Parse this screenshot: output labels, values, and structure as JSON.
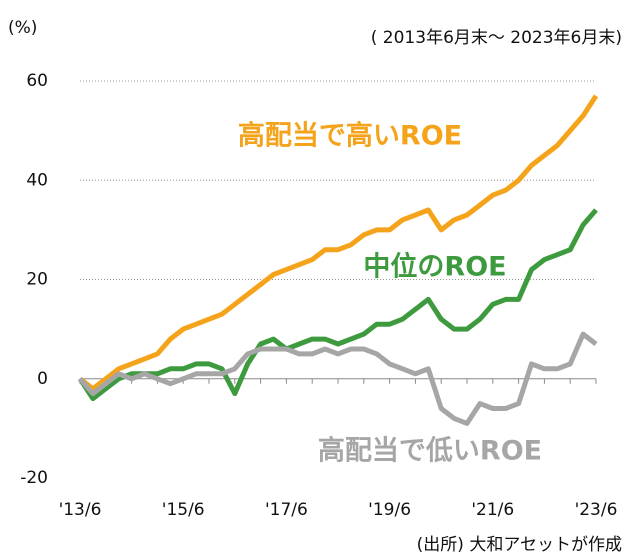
{
  "chart_data": {
    "type": "line",
    "y_unit": "(%)",
    "subtitle": "( 2013年6月末～ 2023年6月末)",
    "source": "(出所) 大和アセットが作成",
    "categories": [
      "'13/6",
      null,
      null,
      null,
      null,
      null,
      null,
      null,
      "'15/6",
      null,
      null,
      null,
      null,
      null,
      null,
      null,
      "'17/6",
      null,
      null,
      null,
      null,
      null,
      null,
      null,
      "'19/6",
      null,
      null,
      null,
      null,
      null,
      null,
      null,
      "'21/6",
      null,
      null,
      null,
      null,
      null,
      null,
      null,
      "'23/6"
    ],
    "series": [
      {
        "name": "高配当で高いROE",
        "color": "#f5a31a",
        "values": [
          0,
          -2,
          0,
          2,
          3,
          4,
          5,
          8,
          10,
          11,
          12,
          13,
          15,
          17,
          19,
          21,
          22,
          23,
          24,
          26,
          26,
          27,
          29,
          30,
          30,
          32,
          33,
          34,
          30,
          32,
          33,
          35,
          37,
          38,
          40,
          43,
          45,
          47,
          50,
          53,
          57
        ]
      },
      {
        "name": "中位のROE",
        "color": "#3e9a3e",
        "values": [
          0,
          -4,
          -2,
          0,
          1,
          1,
          1,
          2,
          2,
          3,
          3,
          2,
          -3,
          3,
          7,
          8,
          6,
          7,
          8,
          8,
          7,
          8,
          9,
          11,
          11,
          12,
          14,
          16,
          12,
          10,
          10,
          12,
          15,
          16,
          16,
          22,
          24,
          25,
          26,
          31,
          34
        ]
      },
      {
        "name": "高配当で低いROE",
        "color": "#a6a6a6",
        "values": [
          0,
          -3,
          -1,
          1,
          0,
          1,
          0,
          -1,
          0,
          1,
          1,
          1,
          2,
          5,
          6,
          6,
          6,
          5,
          5,
          6,
          5,
          6,
          6,
          5,
          3,
          2,
          1,
          2,
          -6,
          -8,
          -9,
          -5,
          -6,
          -6,
          -5,
          3,
          2,
          2,
          3,
          9,
          7
        ]
      }
    ],
    "ylim": [
      -20,
      60
    ],
    "yticks": [
      -20,
      0,
      20,
      40,
      60
    ],
    "grid": true
  }
}
